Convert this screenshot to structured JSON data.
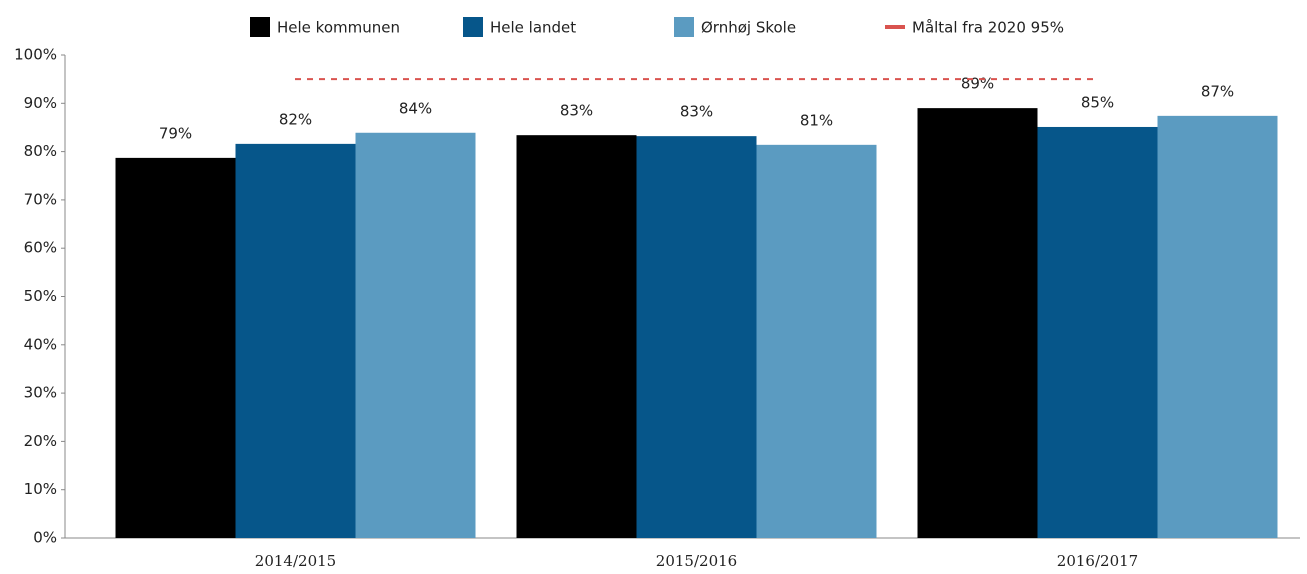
{
  "chart_data": {
    "type": "bar",
    "categories": [
      "2014/2015",
      "2015/2016",
      "2016/2017"
    ],
    "series": [
      {
        "name": "Hele kommunen",
        "color": "#000000",
        "values": [
          78.7,
          83.4,
          89.0
        ],
        "value_labels": [
          "79%",
          "83%",
          "89%"
        ]
      },
      {
        "name": "Hele landet",
        "color": "#06568a",
        "values": [
          81.6,
          83.2,
          85.1
        ],
        "value_labels": [
          "82%",
          "83%",
          "85%"
        ]
      },
      {
        "name": "Ørnhøj Skole",
        "color": "#5b9bc1",
        "values": [
          83.9,
          81.4,
          87.4
        ],
        "value_labels": [
          "84%",
          "81%",
          "87%"
        ]
      }
    ],
    "reference_line": {
      "name": "Måltal fra 2020 95%",
      "value": 95,
      "color": "#d9534f"
    },
    "ylim": [
      0,
      100
    ],
    "yticks": [
      {
        "value": 0,
        "label": "0%"
      },
      {
        "value": 10,
        "label": "10%"
      },
      {
        "value": 20,
        "label": "20%"
      },
      {
        "value": 30,
        "label": "30%"
      },
      {
        "value": 40,
        "label": "40%"
      },
      {
        "value": 50,
        "label": "50%"
      },
      {
        "value": 60,
        "label": "60%"
      },
      {
        "value": 70,
        "label": "70%"
      },
      {
        "value": 80,
        "label": "80%"
      },
      {
        "value": 90,
        "label": "90%"
      },
      {
        "value": 100,
        "label": "100%"
      }
    ],
    "grid": false
  }
}
